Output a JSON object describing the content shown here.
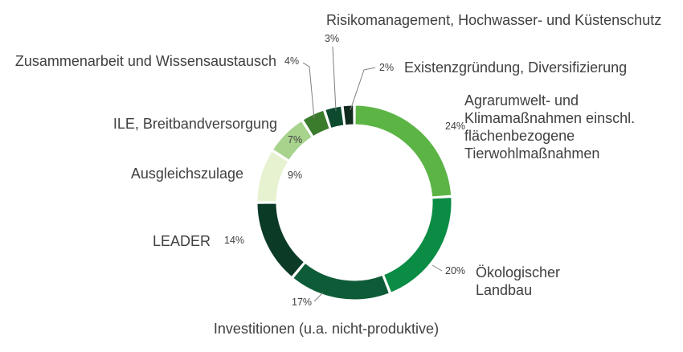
{
  "chart_data": {
    "type": "pie",
    "variant": "donut",
    "title": "",
    "unit": "%",
    "slices": [
      {
        "label": [
          "Agrarumwelt- und",
          "Klimamaßnahmen einschl.",
          "flächenbezogene",
          "Tierwohlmaßnahmen"
        ],
        "value": 24,
        "value_label": "24%",
        "color": "#5cb445"
      },
      {
        "label": [
          "Ökologischer",
          "Landbau"
        ],
        "value": 20,
        "value_label": "20%",
        "color": "#0b8c45"
      },
      {
        "label": [
          "Investitionen (u.a. nicht-produktive)"
        ],
        "value": 17,
        "value_label": "17%",
        "color": "#0e5c37"
      },
      {
        "label": [
          "LEADER"
        ],
        "value": 14,
        "value_label": "14%",
        "color": "#0b3a26"
      },
      {
        "label": [
          "Ausgleichszulage"
        ],
        "value": 9,
        "value_label": "9%",
        "color": "#e6f2d0"
      },
      {
        "label": [
          "ILE, Breitbandversorgung"
        ],
        "value": 7,
        "value_label": "7%",
        "color": "#a8d38d"
      },
      {
        "label": [
          "Zusammenarbeit und Wissensaustausch"
        ],
        "value": 4,
        "value_label": "4%",
        "color": "#3b7b2c"
      },
      {
        "label": [
          "Risikomanagement, Hochwasser- und Küstenschutz"
        ],
        "value": 3,
        "value_label": "3%",
        "color": "#0d4a2e"
      },
      {
        "label": [
          "Existenzgründung, Diversifizierung"
        ],
        "value": 2,
        "value_label": "2%",
        "color": "#122b1f"
      }
    ],
    "legend": "none",
    "labels": "outside with leader lines"
  }
}
